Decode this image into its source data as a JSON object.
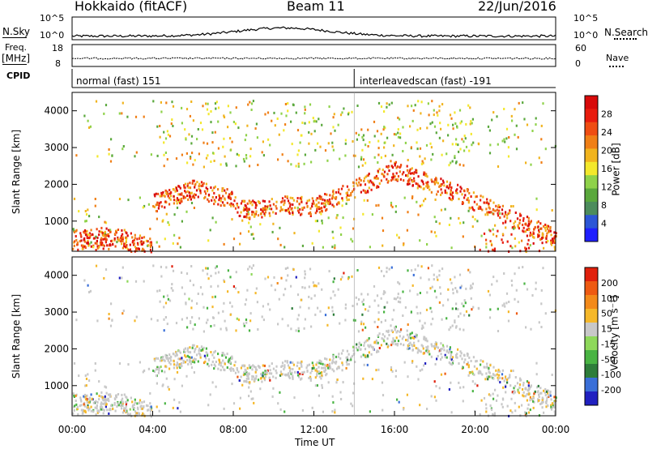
{
  "header": {
    "site": "Hokkaido (fitACF)",
    "beam": "Beam 11",
    "date": "22/Jun/2016"
  },
  "strip_labels": {
    "nsky": "N.Sky",
    "freq_line1": "Freq.",
    "freq_line2": "[MHz]",
    "cpid": "CPID",
    "nsearch": "N.Search",
    "nave": "Nave"
  },
  "strip_ticks": {
    "noise_left_top": "10^5",
    "noise_left_bottom": "10^0",
    "noise_right_top": "10^5",
    "noise_right_bottom": "10^0",
    "freq_top": "18",
    "freq_bottom": "8",
    "nave_top": "60",
    "nave_bottom": "0"
  },
  "cpid_segments": [
    {
      "name": "normal (fast) 151",
      "start_hour": 0,
      "end_hour": 14
    },
    {
      "name": "interleavedscan (fast) -191",
      "start_hour": 14,
      "end_hour": 24
    }
  ],
  "chart_data": [
    {
      "type": "heatmap",
      "parameter": "power",
      "ylabel": "Slant Range [km]",
      "ylim": [
        180,
        4500
      ],
      "yticks": [
        "1000",
        "2000",
        "3000",
        "4000"
      ],
      "xlim_hours": [
        0,
        24
      ],
      "colorbar": {
        "label": "Power [dB]",
        "range": [
          0,
          32
        ],
        "ticks": [
          "28",
          "24",
          "20",
          "16",
          "12",
          "8",
          "4"
        ],
        "colors": [
          "#1f1fff",
          "#2c56d6",
          "#4c8c5c",
          "#5aa83c",
          "#8fd24a",
          "#f3e82c",
          "#f1b41e",
          "#f07f16",
          "#ef4d12",
          "#e81c0e",
          "#d80a0a"
        ]
      }
    },
    {
      "type": "heatmap",
      "parameter": "velocity",
      "ylabel": "Slant Range [km]",
      "ylim": [
        180,
        4500
      ],
      "yticks": [
        "1000",
        "2000",
        "3000",
        "4000"
      ],
      "xlim_hours": [
        0,
        24
      ],
      "xlabel": "Time UT",
      "xticks": [
        "00:00",
        "04:00",
        "08:00",
        "12:00",
        "16:00",
        "20:00",
        "00:00"
      ],
      "colorbar": {
        "label": "Velocity [m s⁻¹]",
        "ticks": [
          "200",
          "100",
          "50",
          "15",
          "-15",
          "-50",
          "-100",
          "-200"
        ],
        "colors": [
          "#2020c0",
          "#3a6fd8",
          "#2e7d3a",
          "#49b443",
          "#8ed85a",
          "#c8c8c8",
          "#f5b82a",
          "#f38a1a",
          "#ee5a12",
          "#e0200c"
        ]
      }
    }
  ]
}
